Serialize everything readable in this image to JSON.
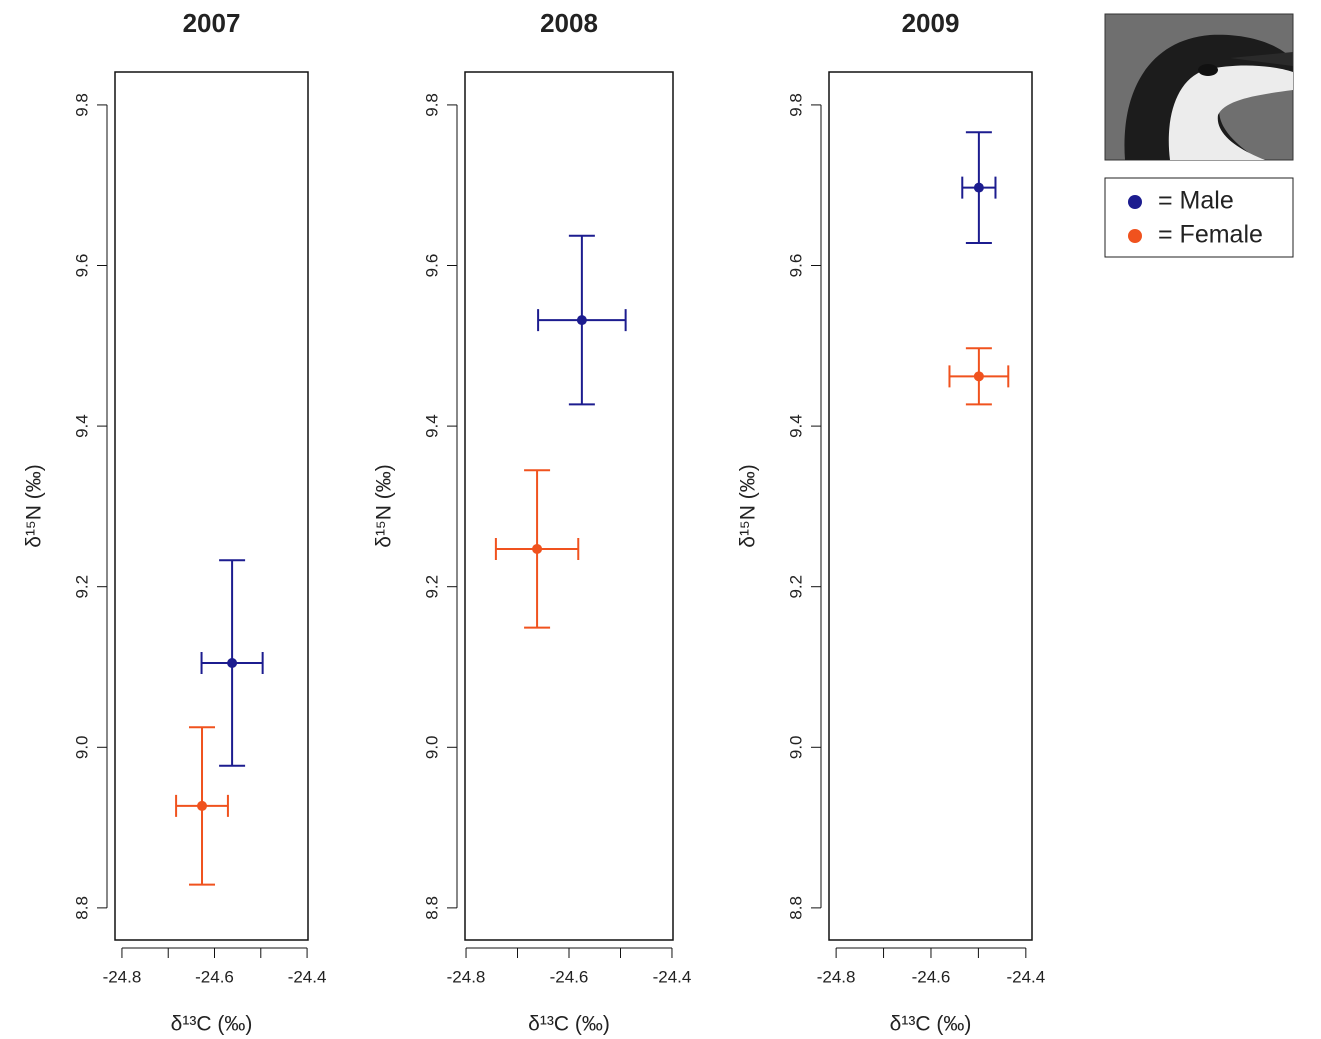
{
  "chart_data": [
    {
      "type": "scatter",
      "title": "2007",
      "x_label": "δ¹³C (‰)",
      "y_label": "δ¹⁵N (‰)",
      "xlim": [
        -24.815,
        -24.398
      ],
      "ylim": [
        8.76,
        9.841
      ],
      "xticks": [
        -24.8,
        -24.6,
        -24.4
      ],
      "xminor_ticks": [
        -24.7,
        -24.5
      ],
      "yticks": [
        8.8,
        {
          "value": 9,
          "label": "9.0"
        },
        9.2,
        9.4,
        9.6,
        9.8
      ],
      "series": [
        {
          "name": "= Male",
          "color": "#1c1c8f",
          "x": [
            -24.562
          ],
          "values": [
            9.105
          ],
          "x_error": [
            0.066
          ],
          "y_error": [
            0.128
          ]
        },
        {
          "name": "= Female",
          "color": "#f0521e",
          "x": [
            -24.627
          ],
          "values": [
            8.927
          ],
          "x_error": [
            0.056
          ],
          "y_error": [
            0.098
          ]
        }
      ]
    },
    {
      "type": "scatter",
      "title": "2008",
      "x_label": "δ¹³C (‰)",
      "y_label": "δ¹⁵N (‰)",
      "xlim": [
        -24.802,
        -24.398
      ],
      "ylim": [
        8.76,
        9.841
      ],
      "xticks": [
        -24.8,
        -24.6,
        -24.4
      ],
      "xminor_ticks": [
        -24.7,
        -24.5
      ],
      "yticks": [
        8.8,
        {
          "value": 9,
          "label": "9.0"
        },
        9.2,
        9.4,
        9.6,
        9.8
      ],
      "series": [
        {
          "name": "= Male",
          "color": "#1c1c8f",
          "x": [
            -24.575
          ],
          "values": [
            9.532
          ],
          "x_error": [
            0.085
          ],
          "y_error": [
            0.105
          ]
        },
        {
          "name": "= Female",
          "color": "#f0521e",
          "x": [
            -24.662
          ],
          "values": [
            9.247
          ],
          "x_error": [
            0.08
          ],
          "y_error": [
            0.098
          ]
        }
      ]
    },
    {
      "type": "scatter",
      "title": "2009",
      "x_label": "δ¹³C (‰)",
      "y_label": "δ¹⁵N (‰)",
      "xlim": [
        -24.815,
        -24.387
      ],
      "ylim": [
        8.76,
        9.841
      ],
      "xticks": [
        -24.8,
        -24.6,
        -24.4
      ],
      "xminor_ticks": [
        -24.7,
        -24.5
      ],
      "yticks": [
        8.8,
        {
          "value": 9,
          "label": "9.0"
        },
        9.2,
        9.4,
        9.6,
        9.8
      ],
      "series": [
        {
          "name": "= Male",
          "color": "#1c1c8f",
          "x": [
            -24.499
          ],
          "values": [
            9.697
          ],
          "x_error": [
            0.035
          ],
          "y_error": [
            0.069
          ]
        },
        {
          "name": "= Female",
          "color": "#f0521e",
          "x": [
            -24.499
          ],
          "values": [
            9.462
          ],
          "x_error": [
            0.062
          ],
          "y_error": [
            0.035
          ]
        }
      ]
    }
  ]
}
